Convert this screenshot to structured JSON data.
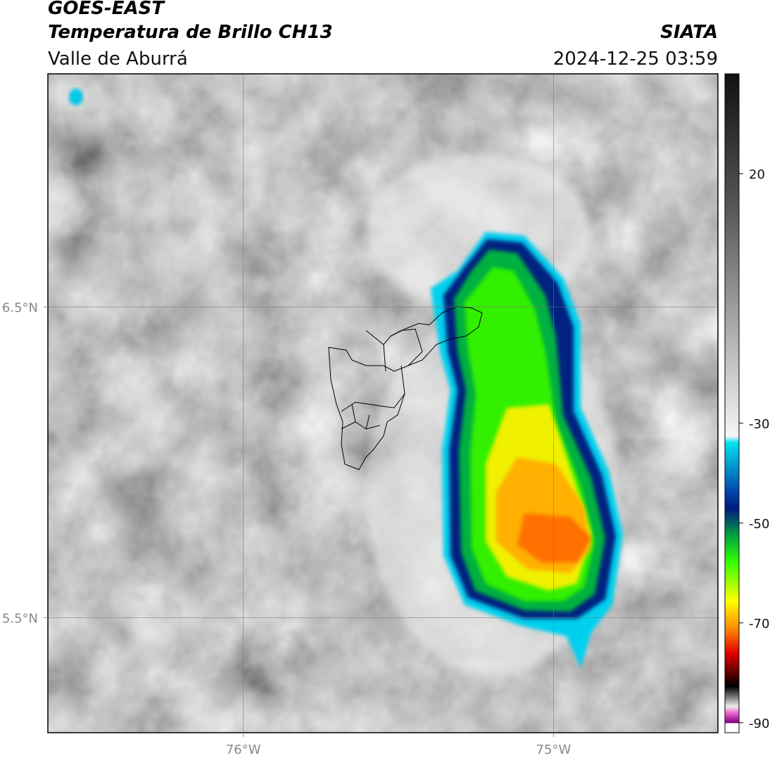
{
  "header": {
    "title": "GOES-EAST",
    "subtitle": "Temperatura de Brillo CH13",
    "region": "Valle de Aburrá",
    "source": "SIATA",
    "timestamp": "2024-12-25 03:59"
  },
  "map": {
    "xlim": [
      -76.63,
      -74.47
    ],
    "ylim": [
      5.13,
      7.25
    ],
    "xticks": [
      {
        "value": -76,
        "label": "76°W"
      },
      {
        "value": -75,
        "label": "75°W"
      }
    ],
    "yticks": [
      {
        "value": 6.5,
        "label": "6.5°N"
      },
      {
        "value": 5.5,
        "label": "5.5°N"
      }
    ],
    "colorbar": {
      "lim": [
        -92,
        40
      ],
      "ticks": [
        20,
        -30,
        -50,
        -70,
        -90
      ]
    }
  }
}
